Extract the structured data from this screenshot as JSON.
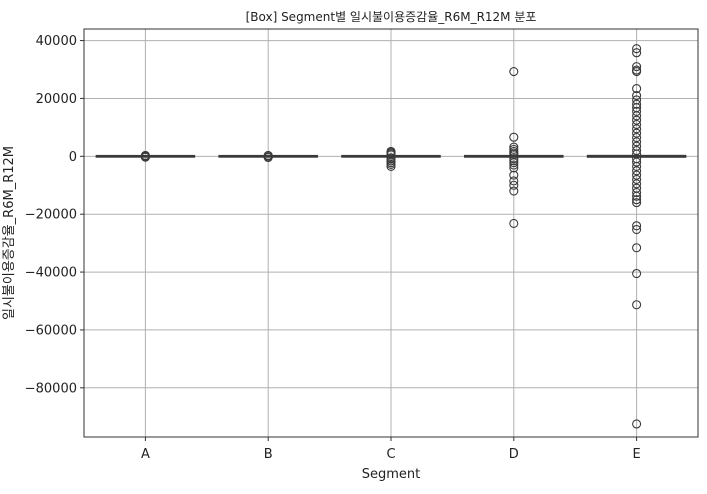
{
  "chart_data": {
    "type": "box",
    "title": "[Box] Segment별 일시불이용증감율_R6M_R12M 분포",
    "xlabel": "Segment",
    "ylabel": "일시불이용증감율_R6M_R12M",
    "categories": [
      "A",
      "B",
      "C",
      "D",
      "E"
    ],
    "ylim": [
      -97000,
      44000
    ],
    "yticks": [
      40000,
      20000,
      0,
      -20000,
      -40000,
      -60000,
      -80000
    ],
    "ytick_labels": [
      "40000",
      "20000",
      "0",
      "−20000",
      "−40000",
      "−60000",
      "−80000"
    ],
    "grid": true,
    "box_color": "#4c72b0",
    "boxes": [
      {
        "category": "A",
        "q1": -50,
        "median": 0,
        "q3": 50,
        "whisker_low": -150,
        "whisker_high": 150,
        "outliers": [
          -300,
          300,
          100,
          -100
        ]
      },
      {
        "category": "B",
        "q1": -50,
        "median": 0,
        "q3": 50,
        "whisker_low": -150,
        "whisker_high": 150,
        "outliers": [
          -400,
          -200,
          200,
          300
        ]
      },
      {
        "category": "C",
        "q1": -50,
        "median": 0,
        "q3": 50,
        "whisker_low": -150,
        "whisker_high": 150,
        "outliers": [
          -3500,
          -2800,
          -2200,
          -1600,
          -1000,
          -500,
          500,
          900,
          1300,
          1700
        ]
      },
      {
        "category": "D",
        "q1": -60,
        "median": 0,
        "q3": 60,
        "whisker_low": -200,
        "whisker_high": 200,
        "outliers": [
          29300,
          6600,
          3200,
          2400,
          1700,
          1100,
          600,
          -800,
          -1500,
          -2200,
          -3000,
          -4000,
          -6500,
          -8500,
          -10000,
          -12000,
          -23200
        ]
      },
      {
        "category": "E",
        "q1": -80,
        "median": 0,
        "q3": 80,
        "whisker_low": -250,
        "whisker_high": 250,
        "outliers": [
          37200,
          35800,
          31000,
          29800,
          29300,
          23400,
          21000,
          19500,
          18000,
          16800,
          15500,
          14000,
          12500,
          11000,
          9500,
          8000,
          6500,
          5000,
          3500,
          2000,
          800,
          -800,
          -2000,
          -3500,
          -5000,
          -6500,
          -8000,
          -9500,
          -11000,
          -12500,
          -13800,
          -15000,
          -16000,
          -24000,
          -25300,
          -31600,
          -40500,
          -51300,
          -92500
        ]
      }
    ]
  }
}
